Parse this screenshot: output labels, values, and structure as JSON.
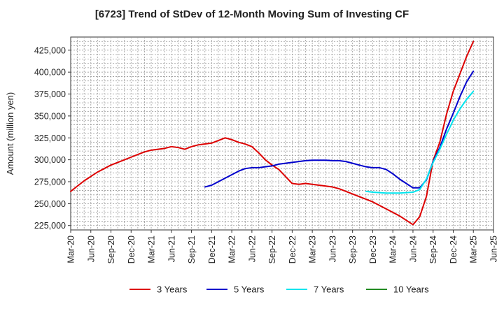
{
  "chart_data": {
    "type": "line",
    "title": "[6723]  Trend of StDev of 12-Month Moving Sum of Investing CF",
    "xlabel": "",
    "ylabel": "Amount (million yen)",
    "ylim": [
      220000,
      440000
    ],
    "yticks": [
      225000,
      250000,
      275000,
      300000,
      325000,
      350000,
      375000,
      400000,
      425000
    ],
    "ytick_labels": [
      "225,000",
      "250,000",
      "275,000",
      "300,000",
      "325,000",
      "350,000",
      "375,000",
      "400,000",
      "425,000"
    ],
    "x_range": [
      "2020-03",
      "2025-06"
    ],
    "xtick_labels": [
      "Mar-20",
      "Jun-20",
      "Sep-20",
      "Dec-20",
      "Mar-21",
      "Jun-21",
      "Sep-21",
      "Dec-21",
      "Mar-22",
      "Jun-22",
      "Sep-22",
      "Dec-22",
      "Mar-23",
      "Jun-23",
      "Sep-23",
      "Dec-23",
      "Mar-24",
      "Jun-24",
      "Sep-24",
      "Dec-24",
      "Mar-25",
      "Jun-25"
    ],
    "grid": true,
    "legend_position": "bottom",
    "series": [
      {
        "name": "3 Years",
        "color": "#dd0000",
        "points": [
          [
            "2020-03",
            264000
          ],
          [
            "2020-04",
            270000
          ],
          [
            "2020-05",
            276000
          ],
          [
            "2020-06",
            281000
          ],
          [
            "2020-07",
            286000
          ],
          [
            "2020-08",
            290000
          ],
          [
            "2020-09",
            294000
          ],
          [
            "2020-10",
            297000
          ],
          [
            "2020-11",
            300000
          ],
          [
            "2020-12",
            303000
          ],
          [
            "2021-01",
            306000
          ],
          [
            "2021-02",
            309000
          ],
          [
            "2021-03",
            311000
          ],
          [
            "2021-04",
            312000
          ],
          [
            "2021-05",
            313000
          ],
          [
            "2021-06",
            315000
          ],
          [
            "2021-07",
            314000
          ],
          [
            "2021-08",
            312000
          ],
          [
            "2021-09",
            315000
          ],
          [
            "2021-10",
            317000
          ],
          [
            "2021-11",
            318000
          ],
          [
            "2021-12",
            319000
          ],
          [
            "2022-01",
            322000
          ],
          [
            "2022-02",
            325000
          ],
          [
            "2022-03",
            323000
          ],
          [
            "2022-04",
            320000
          ],
          [
            "2022-05",
            318000
          ],
          [
            "2022-06",
            315000
          ],
          [
            "2022-07",
            308000
          ],
          [
            "2022-08",
            300000
          ],
          [
            "2022-09",
            294000
          ],
          [
            "2022-10",
            289000
          ],
          [
            "2022-11",
            281000
          ],
          [
            "2022-12",
            273000
          ],
          [
            "2023-01",
            272000
          ],
          [
            "2023-02",
            273000
          ],
          [
            "2023-03",
            272000
          ],
          [
            "2023-04",
            271000
          ],
          [
            "2023-05",
            270000
          ],
          [
            "2023-06",
            269000
          ],
          [
            "2023-07",
            267000
          ],
          [
            "2023-08",
            264000
          ],
          [
            "2023-09",
            261000
          ],
          [
            "2023-10",
            258000
          ],
          [
            "2023-11",
            255000
          ],
          [
            "2023-12",
            252000
          ],
          [
            "2024-01",
            248000
          ],
          [
            "2024-02",
            244000
          ],
          [
            "2024-03",
            240000
          ],
          [
            "2024-04",
            236000
          ],
          [
            "2024-05",
            231000
          ],
          [
            "2024-06",
            226000
          ],
          [
            "2024-07",
            235000
          ],
          [
            "2024-08",
            258000
          ],
          [
            "2024-09",
            299000
          ],
          [
            "2024-10",
            320000
          ],
          [
            "2024-11",
            352000
          ],
          [
            "2024-12",
            378000
          ],
          [
            "2025-01",
            398000
          ],
          [
            "2025-02",
            418000
          ],
          [
            "2025-03",
            435000
          ]
        ]
      },
      {
        "name": "5 Years",
        "color": "#0000cc",
        "points": [
          [
            "2021-11",
            269000
          ],
          [
            "2021-12",
            271000
          ],
          [
            "2022-01",
            275000
          ],
          [
            "2022-02",
            279000
          ],
          [
            "2022-03",
            283000
          ],
          [
            "2022-04",
            287000
          ],
          [
            "2022-05",
            290000
          ],
          [
            "2022-06",
            291000
          ],
          [
            "2022-07",
            291000
          ],
          [
            "2022-08",
            292000
          ],
          [
            "2022-09",
            293000
          ],
          [
            "2022-10",
            295000
          ],
          [
            "2022-11",
            296000
          ],
          [
            "2022-12",
            297000
          ],
          [
            "2023-01",
            298000
          ],
          [
            "2023-02",
            299000
          ],
          [
            "2023-03",
            299500
          ],
          [
            "2023-04",
            299500
          ],
          [
            "2023-05",
            299500
          ],
          [
            "2023-06",
            299000
          ],
          [
            "2023-07",
            299000
          ],
          [
            "2023-08",
            298000
          ],
          [
            "2023-09",
            296000
          ],
          [
            "2023-10",
            294000
          ],
          [
            "2023-11",
            292000
          ],
          [
            "2023-12",
            291000
          ],
          [
            "2024-01",
            291000
          ],
          [
            "2024-02",
            289000
          ],
          [
            "2024-03",
            284000
          ],
          [
            "2024-04",
            278000
          ],
          [
            "2024-05",
            273000
          ],
          [
            "2024-06",
            268000
          ],
          [
            "2024-07",
            268000
          ],
          [
            "2024-08",
            277000
          ],
          [
            "2024-09",
            298000
          ],
          [
            "2024-10",
            314000
          ],
          [
            "2024-11",
            335000
          ],
          [
            "2024-12",
            353000
          ],
          [
            "2025-01",
            372000
          ],
          [
            "2025-02",
            389000
          ],
          [
            "2025-03",
            401000
          ]
        ]
      },
      {
        "name": "7 Years",
        "color": "#00e5ee",
        "points": [
          [
            "2023-11",
            264000
          ],
          [
            "2023-12",
            263000
          ],
          [
            "2024-01",
            262500
          ],
          [
            "2024-02",
            262000
          ],
          [
            "2024-03",
            262000
          ],
          [
            "2024-04",
            262000
          ],
          [
            "2024-05",
            262500
          ],
          [
            "2024-06",
            263000
          ],
          [
            "2024-07",
            266000
          ],
          [
            "2024-08",
            278000
          ],
          [
            "2024-09",
            297000
          ],
          [
            "2024-10",
            312000
          ],
          [
            "2024-11",
            329000
          ],
          [
            "2024-12",
            345000
          ],
          [
            "2025-01",
            358000
          ],
          [
            "2025-02",
            369000
          ],
          [
            "2025-03",
            378000
          ]
        ]
      },
      {
        "name": "10 Years",
        "color": "#228b22",
        "points": []
      }
    ]
  }
}
